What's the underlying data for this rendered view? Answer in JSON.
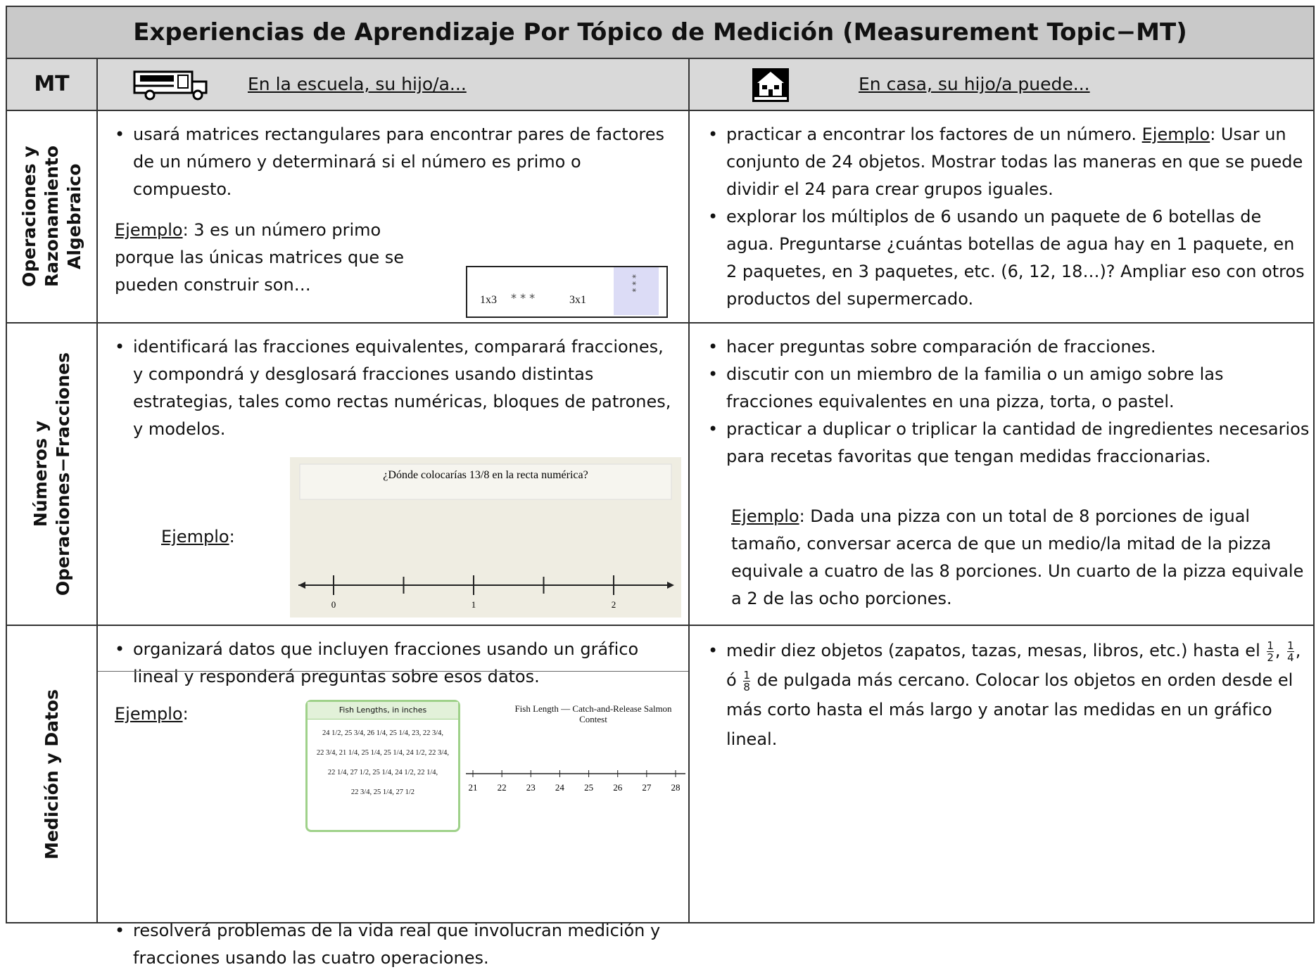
{
  "title": "Experiencias de Aprendizaje Por Tópico de Medición (Measurement Topic−MT)",
  "header": {
    "mt": "MT",
    "school": "En la escuela, su hijo/a...",
    "home": "En casa, su hijo/a puede..."
  },
  "rows": [
    {
      "topic": [
        "Operaciones y",
        "Razonamiento",
        "Algebraico"
      ],
      "school": {
        "bullets": [
          "usará matrices rectangulares para encontrar pares de factores de un número y determinará si el número es primo o compuesto."
        ],
        "example": {
          "label": "Ejemplo",
          "text": ": 3 es un número primo porque las únicas matrices que se pueden construir son…"
        },
        "inset": [
          "1x3",
          "* * *",
          "3x1",
          "* * *"
        ]
      },
      "home": {
        "bullets": [
          {
            "text": "practicar a encontrar los factores de un número. ",
            "example": "Ejemplo",
            "after": ": Usar un conjunto de 24 objetos. Mostrar todas las maneras en que se puede dividir el 24 para crear grupos iguales."
          },
          {
            "text": "explorar los múltiplos de 6 usando un paquete de 6 botellas de agua. Preguntarse ¿cuántas botellas de agua hay en 1 paquete, en 2 paquetes, en 3 paquetes, etc. (6, 12, 18…)? Ampliar eso con otros productos del supermercado."
          }
        ]
      }
    },
    {
      "topic": [
        "Números y",
        "Operaciones−Fracciones"
      ],
      "school": {
        "bullets": [
          "identificará las fracciones equivalentes, comparará fracciones, y compondrá y desglosará fracciones usando distintas estrategias, tales como rectas numéricas, bloques de patrones, y modelos."
        ],
        "example": {
          "label": "Ejemplo",
          "text": ":"
        },
        "number_line": {
          "question": "¿Dónde colocarías 13/8 en la recta numérica?",
          "ticks": [
            0,
            1,
            2
          ]
        }
      },
      "home": {
        "bullets": [
          "hacer preguntas sobre comparación de fracciones.",
          "discutir con un miembro de la familia o un amigo sobre las fracciones equivalentes en una pizza, torta, o pastel.",
          "practicar a duplicar o triplicar la cantidad de ingredientes necesarios para recetas favoritas que tengan medidas fraccionarias."
        ],
        "example": {
          "label": "Ejemplo",
          "text": ": Dada una pizza con un total de 8 porciones de igual tamaño, conversar acerca de que un medio/la mitad de la pizza equivale a cuatro de las 8 porciones. Un cuarto de la pizza equivale a 2 de las ocho porciones."
        }
      }
    },
    {
      "topic": [
        "Medición y Datos"
      ],
      "school": {
        "bullets": [
          "organizará datos que incluyen fracciones usando un gráfico lineal y responderá preguntas sobre esos datos.",
          "resolverá problemas de la vida real que involucran medición y fracciones usando las cuatro operaciones."
        ],
        "example": {
          "label": "Ejemplo",
          "text": ":"
        },
        "fish_table": {
          "title": "Fish Lengths, in inches",
          "rows": [
            "24 1/2, 25 3/4, 26 1/4, 25 1/4, 23, 22 3/4,",
            "22 3/4, 21 1/4, 25 1/4, 25 1/4, 24 1/2, 22 3/4,",
            "22 1/4, 27 1/2, 25 1/4, 24 1/2, 22 1/4,",
            "22 3/4, 25 1/4, 27 1/2"
          ]
        },
        "line_plot": {
          "title": "Fish Length — Catch-and-Release Salmon Contest",
          "ticks": [
            21,
            22,
            23,
            24,
            25,
            26,
            27,
            28
          ]
        }
      },
      "home": {
        "segments": [
          {
            "text": "medir diez objetos (zapatos, tazas, mesas, libros, etc.) hasta el "
          },
          {
            "num": 1,
            "den": 2
          },
          {
            "text": ", "
          },
          {
            "num": 1,
            "den": 4
          },
          {
            "text": ", ó "
          },
          {
            "num": 1,
            "den": 8
          },
          {
            "text": " de pulgada más cercano. Colocar los objetos en orden desde el más corto hasta el más largo y anotar las medidas en un gráfico lineal."
          }
        ]
      }
    }
  ]
}
